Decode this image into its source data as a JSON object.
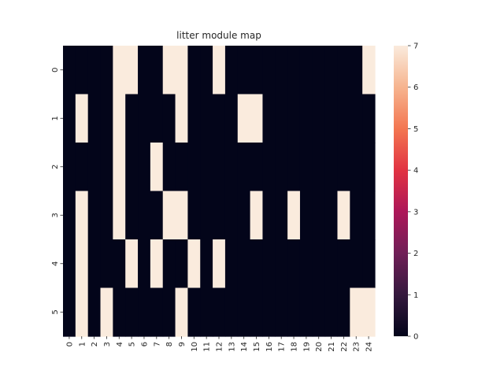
{
  "chart_data": {
    "type": "heatmap",
    "title": "litter module map",
    "xlabel": "",
    "ylabel": "",
    "x_ticks": [
      "0",
      "1",
      "2",
      "3",
      "4",
      "5",
      "6",
      "7",
      "8",
      "9",
      "10",
      "11",
      "12",
      "13",
      "14",
      "15",
      "16",
      "17",
      "18",
      "19",
      "20",
      "21",
      "22",
      "23",
      "24"
    ],
    "y_ticks": [
      "0",
      "1",
      "2",
      "3",
      "4",
      "5"
    ],
    "colorbar": {
      "min": 0,
      "max": 7,
      "ticks": [
        "0",
        "1",
        "2",
        "3",
        "4",
        "5",
        "6",
        "7"
      ],
      "colormap": "rocket",
      "colors": [
        "#03051a",
        "#35193e",
        "#701f57",
        "#ad1759",
        "#e13342",
        "#f37651",
        "#f6b48f",
        "#faebdd"
      ]
    },
    "grid": false,
    "values": [
      [
        0,
        0,
        0,
        0,
        7,
        7,
        0,
        0,
        7,
        7,
        0,
        0,
        7,
        0,
        0,
        0,
        0,
        0,
        0,
        0,
        0,
        0,
        0,
        0,
        7
      ],
      [
        0,
        7,
        0,
        0,
        7,
        0,
        0,
        0,
        0,
        7,
        0,
        0,
        0,
        0,
        7,
        7,
        0,
        0,
        0,
        0,
        0,
        0,
        0,
        0,
        0
      ],
      [
        0,
        0,
        0,
        0,
        7,
        0,
        0,
        7,
        0,
        0,
        0,
        0,
        0,
        0,
        0,
        0,
        0,
        0,
        0,
        0,
        0,
        0,
        0,
        0,
        0
      ],
      [
        0,
        7,
        0,
        0,
        7,
        0,
        0,
        0,
        7,
        7,
        0,
        0,
        0,
        0,
        0,
        7,
        0,
        0,
        7,
        0,
        0,
        0,
        7,
        0,
        0
      ],
      [
        0,
        7,
        0,
        0,
        0,
        7,
        0,
        7,
        0,
        0,
        7,
        0,
        7,
        0,
        0,
        0,
        0,
        0,
        0,
        0,
        0,
        0,
        0,
        0,
        0
      ],
      [
        0,
        7,
        0,
        7,
        0,
        0,
        0,
        0,
        0,
        7,
        0,
        0,
        0,
        0,
        0,
        0,
        0,
        0,
        0,
        0,
        0,
        0,
        0,
        7,
        7
      ]
    ]
  }
}
